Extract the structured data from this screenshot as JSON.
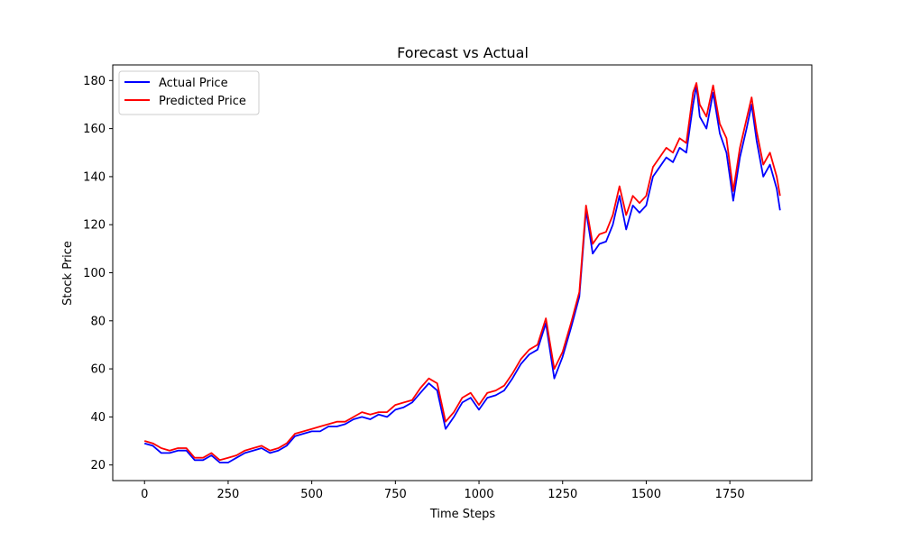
{
  "chart_data": {
    "type": "line",
    "title": "Forecast vs Actual",
    "xlabel": "Time Steps",
    "ylabel": "Stock Price",
    "xlim": [
      -95,
      1995
    ],
    "ylim": [
      13.5,
      186.5
    ],
    "xticks": [
      0,
      250,
      500,
      750,
      1000,
      1250,
      1500,
      1750
    ],
    "yticks": [
      20,
      40,
      60,
      80,
      100,
      120,
      140,
      160,
      180
    ],
    "grid": false,
    "legend_position": "top-left",
    "x": [
      0,
      25,
      50,
      75,
      100,
      125,
      150,
      175,
      200,
      225,
      250,
      275,
      300,
      325,
      350,
      375,
      400,
      425,
      450,
      475,
      500,
      525,
      550,
      575,
      600,
      625,
      650,
      675,
      700,
      725,
      750,
      775,
      800,
      825,
      850,
      875,
      900,
      925,
      950,
      975,
      1000,
      1025,
      1050,
      1075,
      1100,
      1125,
      1150,
      1175,
      1200,
      1225,
      1250,
      1275,
      1300,
      1320,
      1340,
      1360,
      1380,
      1400,
      1420,
      1440,
      1460,
      1480,
      1500,
      1520,
      1540,
      1560,
      1580,
      1600,
      1620,
      1640,
      1650,
      1660,
      1680,
      1700,
      1720,
      1740,
      1760,
      1780,
      1800,
      1815,
      1830,
      1850,
      1870,
      1890,
      1900
    ],
    "series": [
      {
        "name": "Actual Price",
        "color": "#0000ff",
        "values": [
          29,
          28,
          25,
          25,
          26,
          26,
          22,
          22,
          24,
          21,
          21,
          23,
          25,
          26,
          27,
          25,
          26,
          28,
          32,
          33,
          34,
          34,
          36,
          36,
          37,
          39,
          40,
          39,
          41,
          40,
          43,
          44,
          46,
          50,
          54,
          51,
          35,
          40,
          46,
          48,
          43,
          48,
          49,
          51,
          56,
          62,
          66,
          68,
          79,
          56,
          65,
          77,
          90,
          126,
          108,
          112,
          113,
          120,
          132,
          118,
          128,
          125,
          128,
          140,
          144,
          148,
          146,
          152,
          150,
          170,
          178,
          165,
          160,
          175,
          158,
          150,
          130,
          148,
          160,
          170,
          155,
          140,
          145,
          135,
          126
        ]
      },
      {
        "name": "Predicted Price",
        "color": "#ff0000",
        "values": [
          30,
          29,
          27,
          26,
          27,
          27,
          23,
          23,
          25,
          22,
          23,
          24,
          26,
          27,
          28,
          26,
          27,
          29,
          33,
          34,
          35,
          36,
          37,
          38,
          38,
          40,
          42,
          41,
          42,
          42,
          45,
          46,
          47,
          52,
          56,
          54,
          38,
          42,
          48,
          50,
          45,
          50,
          51,
          53,
          58,
          64,
          68,
          70,
          81,
          60,
          67,
          79,
          92,
          128,
          112,
          116,
          117,
          124,
          136,
          124,
          132,
          129,
          132,
          144,
          148,
          152,
          150,
          156,
          154,
          175,
          179,
          170,
          165,
          178,
          162,
          156,
          134,
          152,
          164,
          173,
          159,
          145,
          150,
          140,
          132
        ]
      }
    ]
  }
}
